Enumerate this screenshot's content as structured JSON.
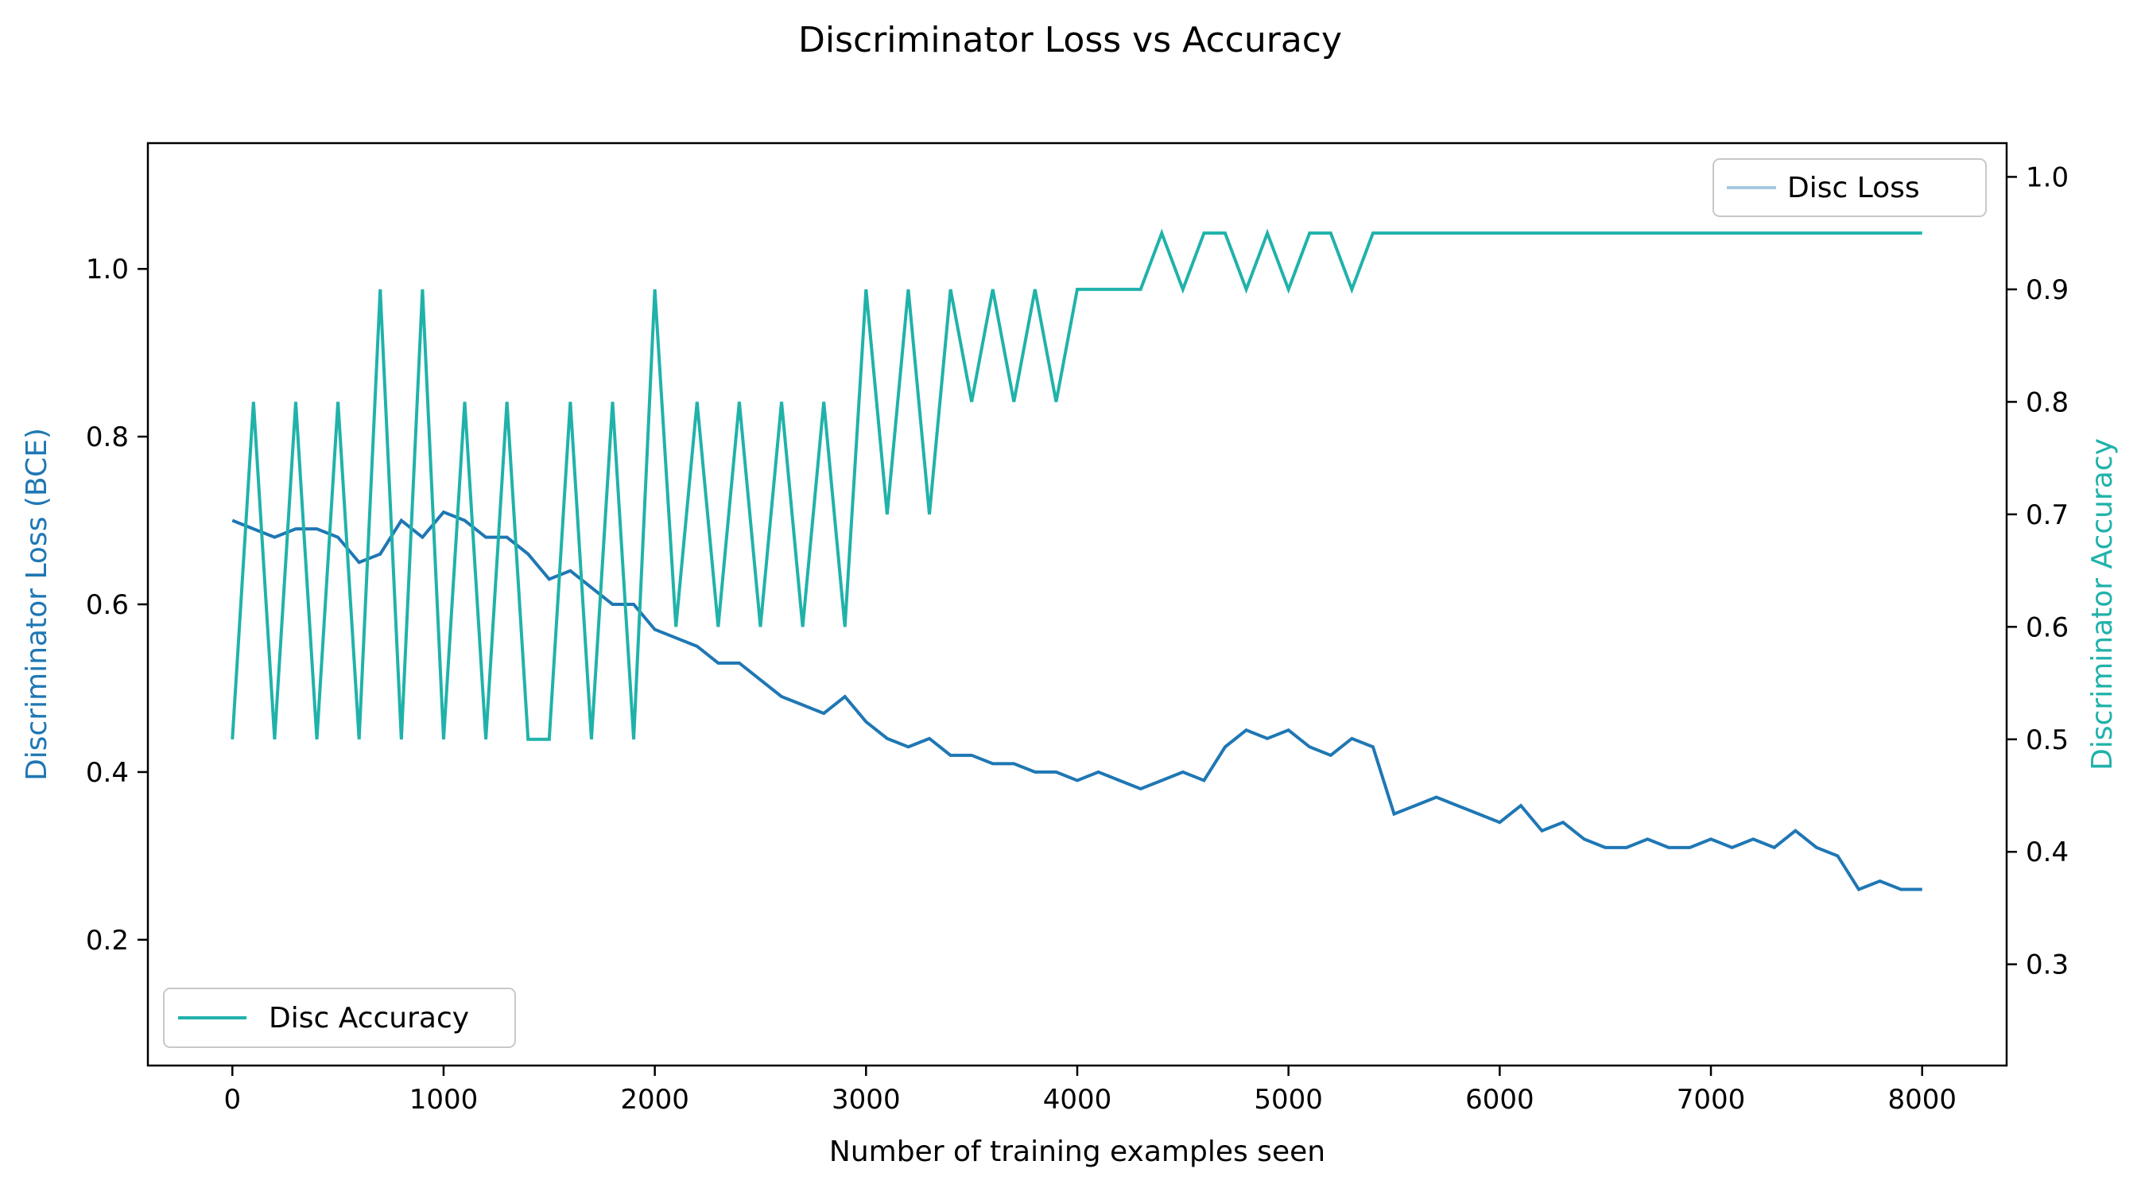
{
  "chart_data": {
    "type": "line",
    "title": "Discriminator Loss vs Accuracy",
    "xlabel": "Number of training examples seen",
    "ylabel_left": "Discriminator Loss (BCE)",
    "ylabel_right": "Discriminator Accuracy",
    "xlim": [
      -400,
      8400
    ],
    "ylim_left": [
      0.05,
      1.15
    ],
    "ylim_right": [
      0.21,
      1.03
    ],
    "x_ticks": [
      0,
      1000,
      2000,
      3000,
      4000,
      5000,
      6000,
      7000,
      8000
    ],
    "y_left_ticks": [
      0.2,
      0.4,
      0.6,
      0.8,
      1.0
    ],
    "y_right_ticks": [
      0.3,
      0.4,
      0.5,
      0.6,
      0.7,
      0.8,
      0.9,
      1.0
    ],
    "grid": false,
    "colors": {
      "loss": "#1f77b4",
      "accuracy": "#20b2aa",
      "raw_loss": "#a6c8e0",
      "left_label": "#1f77b4",
      "right_label": "#20b2aa"
    },
    "legends": [
      {
        "label": "Disc Loss",
        "placement": "upper-right",
        "series": "loss"
      },
      {
        "label": "Disc Accuracy",
        "placement": "lower-left",
        "series": "accuracy"
      }
    ],
    "series": [
      {
        "name": "Disc Loss",
        "axis": "left",
        "x": [
          0,
          100,
          200,
          300,
          400,
          500,
          600,
          700,
          800,
          900,
          1000,
          1100,
          1200,
          1300,
          1400,
          1500,
          1600,
          1700,
          1800,
          1900,
          2000,
          2100,
          2200,
          2300,
          2400,
          2500,
          2600,
          2700,
          2800,
          2900,
          3000,
          3100,
          3200,
          3300,
          3400,
          3500,
          3600,
          3700,
          3800,
          3900,
          4000,
          4100,
          4200,
          4300,
          4400,
          4500,
          4600,
          4700,
          4800,
          4900,
          5000,
          5100,
          5200,
          5300,
          5400,
          5500,
          5600,
          5700,
          5800,
          5900,
          6000,
          6100,
          6200,
          6300,
          6400,
          6500,
          6600,
          6700,
          6800,
          6900,
          7000,
          7100,
          7200,
          7300,
          7400,
          7500,
          7600,
          7700,
          7800,
          7900,
          8000
        ],
        "values": [
          0.7,
          0.69,
          0.68,
          0.69,
          0.69,
          0.68,
          0.65,
          0.66,
          0.7,
          0.68,
          0.71,
          0.7,
          0.68,
          0.68,
          0.66,
          0.63,
          0.64,
          0.62,
          0.6,
          0.6,
          0.57,
          0.56,
          0.55,
          0.53,
          0.53,
          0.51,
          0.49,
          0.48,
          0.47,
          0.49,
          0.46,
          0.44,
          0.43,
          0.44,
          0.42,
          0.42,
          0.41,
          0.41,
          0.4,
          0.4,
          0.39,
          0.4,
          0.39,
          0.38,
          0.39,
          0.4,
          0.39,
          0.43,
          0.45,
          0.44,
          0.45,
          0.43,
          0.42,
          0.44,
          0.43,
          0.35,
          0.36,
          0.37,
          0.36,
          0.35,
          0.34,
          0.36,
          0.33,
          0.34,
          0.32,
          0.31,
          0.31,
          0.32,
          0.31,
          0.31,
          0.32,
          0.31,
          0.32,
          0.31,
          0.33,
          0.31,
          0.3,
          0.26,
          0.27,
          0.26,
          0.26
        ]
      },
      {
        "name": "Disc Accuracy",
        "axis": "right",
        "x": [
          0,
          100,
          200,
          300,
          400,
          500,
          600,
          700,
          800,
          900,
          1000,
          1100,
          1200,
          1300,
          1400,
          1500,
          1600,
          1700,
          1800,
          1900,
          2000,
          2100,
          2200,
          2300,
          2400,
          2500,
          2600,
          2700,
          2800,
          2900,
          3000,
          3100,
          3200,
          3300,
          3400,
          3500,
          3600,
          3700,
          3800,
          3900,
          4000,
          4100,
          4200,
          4300,
          4400,
          4500,
          4600,
          4700,
          4800,
          4900,
          5000,
          5100,
          5200,
          5300,
          5400,
          5500,
          5600,
          5700,
          5800,
          5900,
          6000,
          6100,
          6200,
          6300,
          6400,
          6500,
          6600,
          6700,
          6800,
          6900,
          7000,
          7100,
          7200,
          7300,
          7400,
          7500,
          7600,
          7700,
          7800,
          7900,
          8000
        ],
        "values": [
          0.5,
          0.8,
          0.5,
          0.8,
          0.5,
          0.8,
          0.5,
          0.9,
          0.5,
          0.9,
          0.5,
          0.8,
          0.5,
          0.8,
          0.5,
          0.5,
          0.8,
          0.5,
          0.8,
          0.5,
          0.9,
          0.6,
          0.8,
          0.6,
          0.8,
          0.6,
          0.8,
          0.6,
          0.8,
          0.6,
          0.9,
          0.7,
          0.9,
          0.7,
          0.9,
          0.8,
          0.9,
          0.8,
          0.9,
          0.8,
          0.9,
          0.9,
          0.9,
          0.9,
          0.95,
          0.9,
          0.95,
          0.95,
          0.9,
          0.95,
          0.9,
          0.95,
          0.95,
          0.9,
          0.95,
          0.95,
          0.95,
          0.95,
          0.95,
          0.95,
          0.95,
          0.95,
          0.95,
          0.95,
          0.95,
          0.95,
          0.95,
          0.95,
          0.95,
          0.95,
          0.95,
          0.95,
          0.95,
          0.95,
          0.95,
          0.95,
          0.95,
          0.95,
          0.95,
          0.95,
          0.95
        ]
      }
    ]
  }
}
